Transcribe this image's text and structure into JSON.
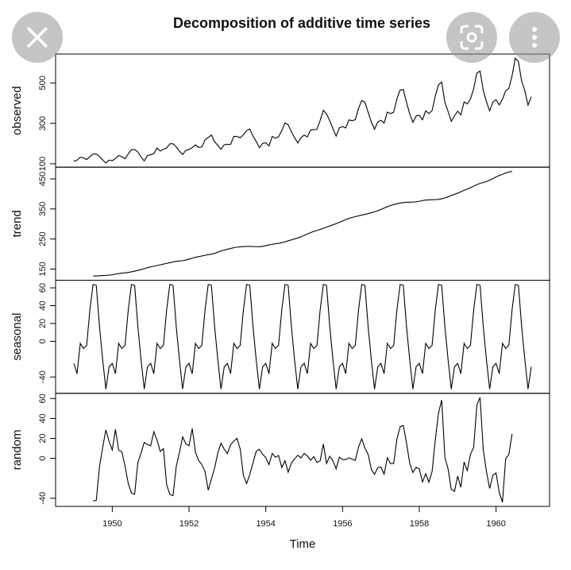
{
  "chart_data": {
    "type": "line",
    "title": "Decomposition of additive time series",
    "xlabel": "Time",
    "xlim": [
      1948.523,
      1961.394
    ],
    "xticks": [
      1950,
      1952,
      1954,
      1956,
      1958,
      1960
    ],
    "color": "#000000",
    "x": [
      1949,
      1949.083,
      1949.167,
      1949.25,
      1949.333,
      1949.417,
      1949.5,
      1949.583,
      1949.667,
      1949.75,
      1949.833,
      1949.917,
      1950,
      1950.083,
      1950.167,
      1950.25,
      1950.333,
      1950.417,
      1950.5,
      1950.583,
      1950.667,
      1950.75,
      1950.833,
      1950.917,
      1951,
      1951.083,
      1951.167,
      1951.25,
      1951.333,
      1951.417,
      1951.5,
      1951.583,
      1951.667,
      1951.75,
      1951.833,
      1951.917,
      1952,
      1952.083,
      1952.167,
      1952.25,
      1952.333,
      1952.417,
      1952.5,
      1952.583,
      1952.667,
      1952.75,
      1952.833,
      1952.917,
      1953,
      1953.083,
      1953.167,
      1953.25,
      1953.333,
      1953.417,
      1953.5,
      1953.583,
      1953.667,
      1953.75,
      1953.833,
      1953.917,
      1954,
      1954.083,
      1954.167,
      1954.25,
      1954.333,
      1954.417,
      1954.5,
      1954.583,
      1954.667,
      1954.75,
      1954.833,
      1954.917,
      1955,
      1955.083,
      1955.167,
      1955.25,
      1955.333,
      1955.417,
      1955.5,
      1955.583,
      1955.667,
      1955.75,
      1955.833,
      1955.917,
      1956,
      1956.083,
      1956.167,
      1956.25,
      1956.333,
      1956.417,
      1956.5,
      1956.583,
      1956.667,
      1956.75,
      1956.833,
      1956.917,
      1957,
      1957.083,
      1957.167,
      1957.25,
      1957.333,
      1957.417,
      1957.5,
      1957.583,
      1957.667,
      1957.75,
      1957.833,
      1957.917,
      1958,
      1958.083,
      1958.167,
      1958.25,
      1958.333,
      1958.417,
      1958.5,
      1958.583,
      1958.667,
      1958.75,
      1958.833,
      1958.917,
      1959,
      1959.083,
      1959.167,
      1959.25,
      1959.333,
      1959.417,
      1959.5,
      1959.583,
      1959.667,
      1959.75,
      1959.833,
      1959.917,
      1960,
      1960.083,
      1960.167,
      1960.25,
      1960.333,
      1960.417,
      1960.5,
      1960.583,
      1960.667,
      1960.75,
      1960.833,
      1960.917
    ],
    "panels": [
      {
        "ylabel": "observed",
        "ylim": [
          83.3,
          642.7
        ],
        "yticks": [
          100,
          300,
          500
        ],
        "values": [
          112,
          118,
          132,
          129,
          121,
          135,
          148,
          148,
          136,
          119,
          104,
          118,
          115,
          126,
          141,
          135,
          125,
          149,
          170,
          170,
          158,
          133,
          114,
          140,
          145,
          150,
          178,
          163,
          172,
          178,
          199,
          199,
          184,
          162,
          146,
          166,
          171,
          180,
          193,
          181,
          183,
          218,
          230,
          242,
          209,
          191,
          172,
          194,
          196,
          196,
          236,
          235,
          229,
          243,
          264,
          272,
          237,
          211,
          180,
          201,
          204,
          188,
          235,
          227,
          234,
          264,
          302,
          293,
          259,
          229,
          203,
          229,
          242,
          233,
          267,
          269,
          270,
          315,
          364,
          347,
          312,
          274,
          237,
          278,
          284,
          277,
          317,
          313,
          318,
          374,
          413,
          405,
          355,
          306,
          271,
          306,
          315,
          301,
          356,
          348,
          355,
          422,
          465,
          467,
          404,
          347,
          305,
          336,
          340,
          318,
          362,
          348,
          363,
          435,
          491,
          505,
          404,
          359,
          310,
          337,
          360,
          342,
          406,
          396,
          420,
          472,
          548,
          559,
          463,
          407,
          362,
          405,
          417,
          391,
          419,
          461,
          472,
          535,
          622,
          606,
          508,
          461,
          390,
          432
        ]
      },
      {
        "ylabel": "trend",
        "ylim": [
          112.9,
          489.0
        ],
        "yticks": [
          150,
          250,
          350,
          450
        ],
        "values": [
          null,
          null,
          null,
          null,
          null,
          null,
          126.79,
          127.25,
          127.96,
          128.58,
          129.0,
          129.75,
          131.25,
          133.08,
          134.92,
          136.42,
          137.42,
          138.75,
          140.92,
          143.17,
          145.71,
          148.42,
          151.54,
          154.71,
          157.13,
          159.54,
          161.83,
          164.13,
          166.67,
          169.08,
          171.25,
          173.58,
          175.46,
          176.83,
          178.04,
          180.17,
          183.13,
          186.21,
          189.04,
          191.29,
          193.58,
          195.83,
          198.04,
          199.75,
          202.21,
          206.25,
          210.42,
          213.38,
          215.83,
          218.5,
          220.92,
          222.92,
          224.08,
          224.71,
          225.33,
          225.33,
          224.96,
          224.58,
          224.46,
          225.54,
          228.0,
          230.46,
          232.25,
          233.92,
          235.63,
          237.75,
          240.5,
          243.96,
          247.17,
          250.25,
          253.5,
          257.13,
          261.83,
          266.67,
          271.13,
          275.21,
          278.5,
          281.96,
          285.75,
          289.33,
          293.25,
          297.17,
          301.0,
          305.46,
          309.96,
          314.42,
          318.63,
          321.75,
          324.5,
          327.08,
          329.54,
          331.83,
          334.46,
          337.54,
          340.54,
          344.08,
          348.25,
          353.0,
          357.63,
          361.38,
          364.5,
          367.17,
          369.46,
          371.21,
          372.17,
          372.42,
          372.75,
          373.63,
          375.25,
          377.92,
          379.5,
          380.0,
          380.71,
          380.96,
          381.83,
          383.67,
          386.5,
          390.33,
          394.71,
          398.63,
          402.54,
          407.17,
          411.88,
          416.33,
          420.5,
          425.5,
          430.71,
          435.13,
          437.71,
          440.96,
          445.83,
          450.63,
          456.33,
          461.38,
          465.21,
          469.33,
          472.75,
          475.04,
          null,
          null,
          null,
          null,
          null,
          null
        ]
      },
      {
        "ylabel": "seasonal",
        "ylim": [
          -58.29,
          68.53
        ],
        "yticks": [
          -40,
          0,
          20,
          40,
          60
        ],
        "values": [
          -24.75,
          -36.19,
          -2.24,
          -8.04,
          -4.51,
          35.4,
          63.83,
          62.82,
          16.52,
          -20.64,
          -53.59,
          -28.62,
          -24.75,
          -36.19,
          -2.24,
          -8.04,
          -4.51,
          35.4,
          63.83,
          62.82,
          16.52,
          -20.64,
          -53.59,
          -28.62,
          -24.75,
          -36.19,
          -2.24,
          -8.04,
          -4.51,
          35.4,
          63.83,
          62.82,
          16.52,
          -20.64,
          -53.59,
          -28.62,
          -24.75,
          -36.19,
          -2.24,
          -8.04,
          -4.51,
          35.4,
          63.83,
          62.82,
          16.52,
          -20.64,
          -53.59,
          -28.62,
          -24.75,
          -36.19,
          -2.24,
          -8.04,
          -4.51,
          35.4,
          63.83,
          62.82,
          16.52,
          -20.64,
          -53.59,
          -28.62,
          -24.75,
          -36.19,
          -2.24,
          -8.04,
          -4.51,
          35.4,
          63.83,
          62.82,
          16.52,
          -20.64,
          -53.59,
          -28.62,
          -24.75,
          -36.19,
          -2.24,
          -8.04,
          -4.51,
          35.4,
          63.83,
          62.82,
          16.52,
          -20.64,
          -53.59,
          -28.62,
          -24.75,
          -36.19,
          -2.24,
          -8.04,
          -4.51,
          35.4,
          63.83,
          62.82,
          16.52,
          -20.64,
          -53.59,
          -28.62,
          -24.75,
          -36.19,
          -2.24,
          -8.04,
          -4.51,
          35.4,
          63.83,
          62.82,
          16.52,
          -20.64,
          -53.59,
          -28.62,
          -24.75,
          -36.19,
          -2.24,
          -8.04,
          -4.51,
          35.4,
          63.83,
          62.82,
          16.52,
          -20.64,
          -53.59,
          -28.62,
          -24.75,
          -36.19,
          -2.24,
          -8.04,
          -4.51,
          35.4,
          63.83,
          62.82,
          16.52,
          -20.64,
          -53.59,
          -28.62,
          -24.75,
          -36.19,
          -2.24,
          -8.04,
          -4.51,
          35.4,
          63.83,
          62.82,
          16.52,
          -20.64,
          -53.59,
          -28.62
        ]
      },
      {
        "ylabel": "random",
        "ylim": [
          -48.17,
          65.25
        ],
        "yticks": [
          -40,
          0,
          20,
          40,
          60
        ],
        "values": [
          null,
          null,
          null,
          null,
          null,
          null,
          -42.6,
          -42.1,
          -8.5,
          11.1,
          28.6,
          16.9,
          8.5,
          29.1,
          8.3,
          6.6,
          -7.9,
          -25.2,
          -34.8,
          -36.0,
          -4.2,
          5.2,
          16.1,
          13.9,
          12.6,
          26.7,
          18.4,
          6.9,
          9.8,
          -26.5,
          -36.1,
          -37.4,
          -8.0,
          5.8,
          21.6,
          14.5,
          12.6,
          30.0,
          6.2,
          -2.3,
          -6.1,
          -13.2,
          -31.9,
          -20.6,
          -9.7,
          5.4,
          15.2,
          9.2,
          4.9,
          13.7,
          17.3,
          20.1,
          9.4,
          -17.1,
          -25.2,
          -16.2,
          -4.5,
          7.1,
          9.1,
          4.1,
          0.8,
          -6.3,
          5.0,
          1.1,
          2.9,
          -9.2,
          -2.3,
          -13.8,
          -4.7,
          -0.6,
          3.1,
          0.5,
          4.9,
          2.5,
          -1.9,
          1.8,
          -4.0,
          -2.4,
          14.4,
          -5.2,
          2.2,
          -2.5,
          -10.4,
          1.2,
          -1.2,
          -1.2,
          0.6,
          -0.7,
          -2.0,
          11.5,
          19.6,
          10.4,
          4.0,
          -10.9,
          -16.0,
          -9.5,
          -8.5,
          -15.8,
          0.6,
          -5.3,
          -5.0,
          19.4,
          31.7,
          33.0,
          15.3,
          -4.8,
          -14.2,
          -9.0,
          -10.5,
          -23.7,
          -15.3,
          -24.0,
          -13.2,
          18.6,
          45.3,
          58.5,
          1.0,
          -10.7,
          -31.1,
          -33.0,
          -17.8,
          -29.0,
          -3.6,
          -12.3,
          4.0,
          11.1,
          53.5,
          61.1,
          8.8,
          -13.3,
          -30.2,
          -17.0,
          -14.6,
          -34.2,
          -44.0,
          -0.3,
          3.8,
          24.6,
          null,
          null,
          null,
          null,
          null,
          null
        ]
      }
    ]
  }
}
